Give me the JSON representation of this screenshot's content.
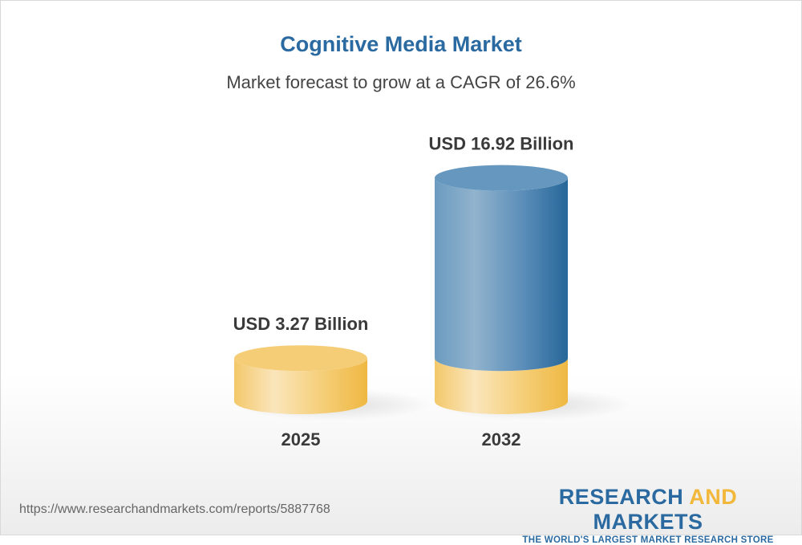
{
  "title": "Cognitive Media Market",
  "subtitle": "Market forecast to grow at a CAGR of 26.6%",
  "chart_data": {
    "type": "bar",
    "style": "3d-cylinder",
    "categories": [
      "2025",
      "2032"
    ],
    "values": [
      3.27,
      16.92
    ],
    "value_labels": [
      "USD 3.27 Billion",
      "USD 16.92 Billion"
    ],
    "unit": "USD Billion",
    "colors": {
      "base": "#f2c35a",
      "growth": "#2a6aa1"
    }
  },
  "footer": {
    "url": "https://www.researchandmarkets.com/reports/5887768",
    "logo_part1": "RESEARCH ",
    "logo_part2": "AND",
    "logo_part3": " MARKETS",
    "tagline": "THE WORLD'S LARGEST MARKET RESEARCH STORE"
  }
}
